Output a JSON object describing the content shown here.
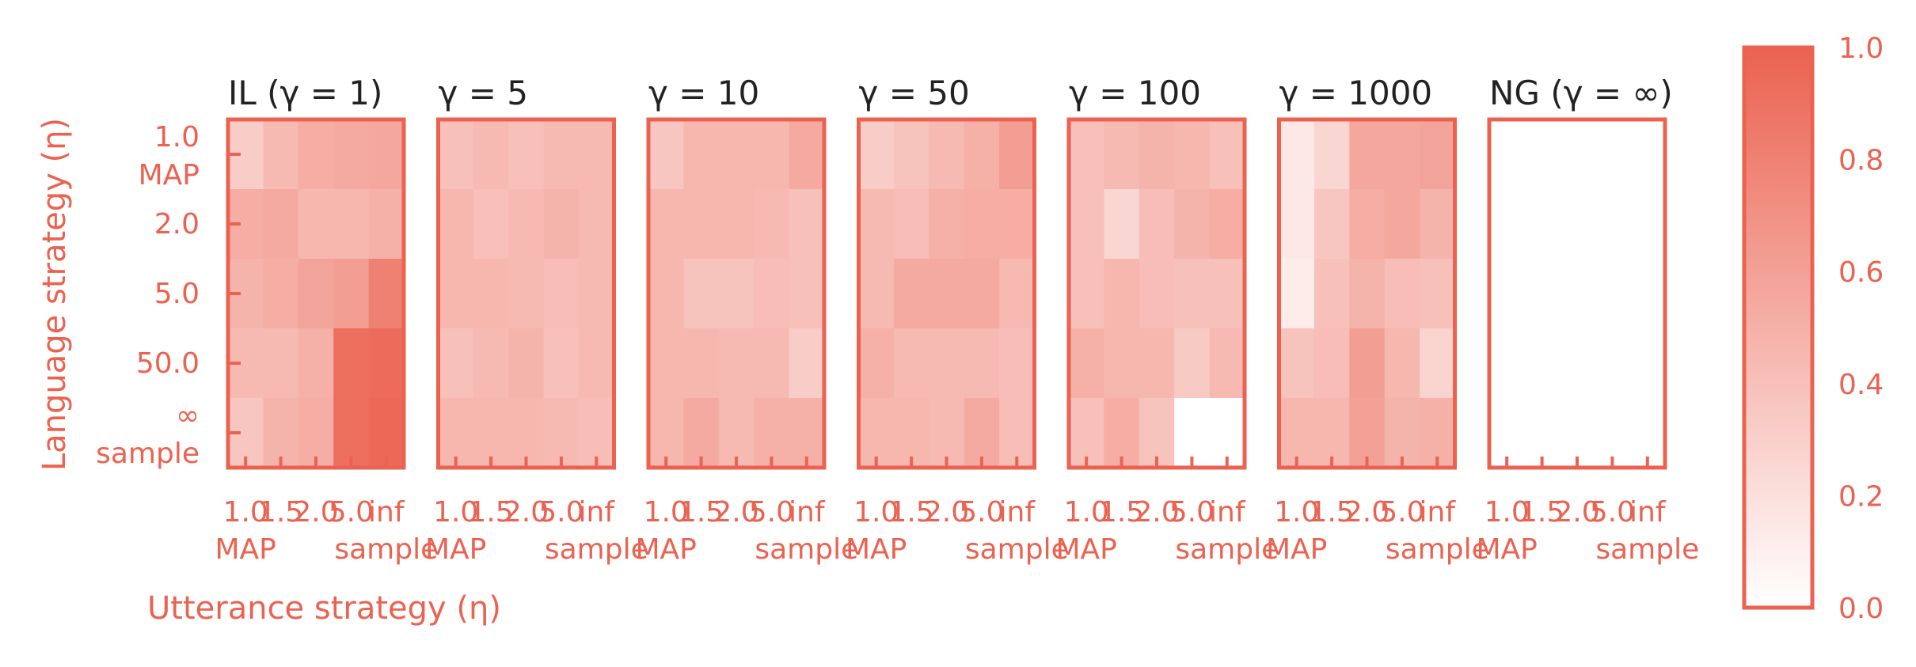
{
  "chart_data": {
    "type": "heatmap",
    "xlabel": "Utterance strategy (η)",
    "ylabel": "Language strategy (η)",
    "x_ticks": [
      {
        "value": "1.0",
        "sub": "MAP"
      },
      {
        "value": "1.5",
        "sub": ""
      },
      {
        "value": "2.0",
        "sub": ""
      },
      {
        "value": "5.0",
        "sub": ""
      },
      {
        "value": "inf",
        "sub": "sample"
      }
    ],
    "y_ticks": [
      {
        "value": "1.0",
        "sub": "MAP"
      },
      {
        "value": "2.0",
        "sub": ""
      },
      {
        "value": "5.0",
        "sub": ""
      },
      {
        "value": "50.0",
        "sub": ""
      },
      {
        "value": "∞",
        "sub": "sample"
      }
    ],
    "colorbar": {
      "min": 0.0,
      "max": 1.0,
      "low_color": "#ffffff",
      "high_color": "#eb6250",
      "ticks": [
        "0.0",
        "0.2",
        "0.4",
        "0.6",
        "0.8",
        "1.0"
      ]
    },
    "accent_color": "#eb6250",
    "title_color": "#222222",
    "panels": [
      {
        "title": "IL (γ = 1)",
        "values": [
          [
            0.32,
            0.44,
            0.52,
            0.54,
            0.56
          ],
          [
            0.52,
            0.54,
            0.46,
            0.46,
            0.5
          ],
          [
            0.48,
            0.52,
            0.58,
            0.62,
            0.8
          ],
          [
            0.44,
            0.44,
            0.5,
            0.92,
            0.94
          ],
          [
            0.36,
            0.48,
            0.52,
            0.92,
            0.96
          ]
        ]
      },
      {
        "title": "γ = 5",
        "values": [
          [
            0.4,
            0.44,
            0.4,
            0.44,
            0.44
          ],
          [
            0.46,
            0.4,
            0.44,
            0.48,
            0.44
          ],
          [
            0.46,
            0.46,
            0.44,
            0.42,
            0.44
          ],
          [
            0.4,
            0.44,
            0.48,
            0.4,
            0.44
          ],
          [
            0.46,
            0.46,
            0.46,
            0.44,
            0.42
          ]
        ]
      },
      {
        "title": "γ = 10",
        "values": [
          [
            0.36,
            0.46,
            0.46,
            0.46,
            0.54
          ],
          [
            0.46,
            0.46,
            0.46,
            0.44,
            0.4
          ],
          [
            0.46,
            0.38,
            0.38,
            0.42,
            0.4
          ],
          [
            0.46,
            0.46,
            0.44,
            0.44,
            0.32
          ],
          [
            0.46,
            0.54,
            0.44,
            0.5,
            0.5
          ]
        ]
      },
      {
        "title": "γ = 50",
        "values": [
          [
            0.32,
            0.38,
            0.44,
            0.5,
            0.62
          ],
          [
            0.44,
            0.42,
            0.5,
            0.52,
            0.52
          ],
          [
            0.44,
            0.54,
            0.54,
            0.54,
            0.44
          ],
          [
            0.5,
            0.44,
            0.44,
            0.44,
            0.42
          ],
          [
            0.46,
            0.46,
            0.44,
            0.54,
            0.42
          ]
        ]
      },
      {
        "title": "γ = 100",
        "values": [
          [
            0.4,
            0.44,
            0.48,
            0.46,
            0.4
          ],
          [
            0.4,
            0.26,
            0.42,
            0.48,
            0.52
          ],
          [
            0.4,
            0.46,
            0.42,
            0.4,
            0.4
          ],
          [
            0.5,
            0.46,
            0.46,
            0.34,
            0.44
          ],
          [
            0.4,
            0.52,
            0.38,
            0.0,
            0.0
          ]
        ]
      },
      {
        "title": "γ = 1000",
        "values": [
          [
            0.14,
            0.26,
            0.56,
            0.56,
            0.58
          ],
          [
            0.14,
            0.36,
            0.52,
            0.56,
            0.48
          ],
          [
            0.12,
            0.4,
            0.48,
            0.42,
            0.4
          ],
          [
            0.38,
            0.42,
            0.62,
            0.46,
            0.28
          ],
          [
            0.46,
            0.46,
            0.6,
            0.48,
            0.5
          ]
        ]
      },
      {
        "title": "NG (γ = ∞)",
        "values": [
          [
            0,
            0,
            0,
            0,
            0
          ],
          [
            0,
            0,
            0,
            0,
            0
          ],
          [
            0,
            0,
            0,
            0,
            0
          ],
          [
            0,
            0,
            0,
            0,
            0
          ],
          [
            0,
            0,
            0,
            0,
            0
          ]
        ]
      }
    ]
  }
}
